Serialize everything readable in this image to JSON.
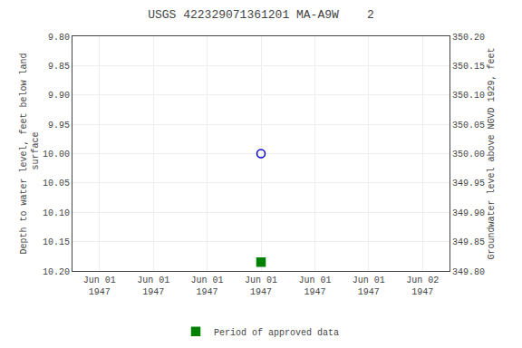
{
  "chart_data": {
    "type": "scatter",
    "title": "USGS 422329071361201 MA-A9W    2",
    "y_label": "Depth to water level, feet below land\n surface",
    "y2_label": "Groundwater level above NGVD 1929, feet",
    "categories": [
      "Jun 01\n1947",
      "Jun 01\n1947",
      "Jun 01\n1947",
      "Jun 01\n1947",
      "Jun 01\n1947",
      "Jun 01\n1947",
      "Jun 02\n1947"
    ],
    "series": [
      {
        "color": "#0000cc",
        "marker": "circle-open",
        "values": [
          null,
          null,
          null,
          10.0,
          null,
          null,
          null
        ]
      },
      {
        "name": "Period of approved data",
        "color": "#008000",
        "marker": "square",
        "values": [
          null,
          null,
          null,
          10.185,
          null,
          null,
          null
        ]
      }
    ],
    "ylim": [
      10.2,
      9.8
    ],
    "yticks": [
      {
        "value": 9.8,
        "label": "9.80"
      },
      9.85,
      {
        "value": 9.9,
        "label": "9.90"
      },
      9.95,
      {
        "value": 10.0,
        "label": "10.00"
      },
      10.05,
      {
        "value": 10.1,
        "label": "10.10"
      },
      10.15,
      {
        "value": 10.2,
        "label": "10.20"
      }
    ],
    "y2lim": [
      349.8,
      350.2
    ],
    "y2ticks": [
      {
        "value": 349.8,
        "label": "349.80"
      },
      349.85,
      {
        "value": 349.9,
        "label": "349.90"
      },
      349.95,
      {
        "value": 350.0,
        "label": "350.00"
      },
      350.05,
      {
        "value": 350.1,
        "label": "350.10"
      },
      350.15,
      {
        "value": 350.2,
        "label": "350.20"
      }
    ],
    "grid": true,
    "legend": "bottom"
  }
}
